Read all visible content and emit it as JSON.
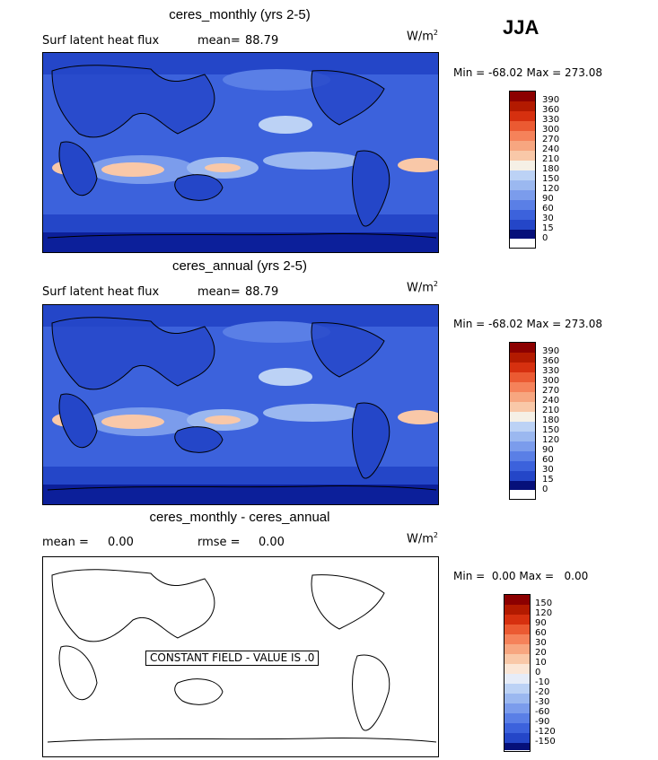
{
  "season": "JJA",
  "panels": [
    {
      "title": "ceres_monthly (yrs 2-5)",
      "variable": "Surf latent heat flux",
      "mean_label": "mean=",
      "mean_value": "88.79",
      "units_base": "W/m",
      "units_exp": "2",
      "min_label": "Min =",
      "min_value": "-68.02",
      "max_label": "Max =",
      "max_value": "273.08",
      "colorbar": [
        "390",
        "360",
        "330",
        "300",
        "270",
        "240",
        "210",
        "180",
        "150",
        "120",
        "90",
        "60",
        "30",
        "15",
        "0"
      ]
    },
    {
      "title": "ceres_annual (yrs 2-5)",
      "variable": "Surf latent heat flux",
      "mean_label": "mean=",
      "mean_value": "88.79",
      "units_base": "W/m",
      "units_exp": "2",
      "min_label": "Min =",
      "min_value": "-68.02",
      "max_label": "Max =",
      "max_value": "273.08",
      "colorbar": [
        "390",
        "360",
        "330",
        "300",
        "270",
        "240",
        "210",
        "180",
        "150",
        "120",
        "90",
        "60",
        "30",
        "15",
        "0"
      ]
    },
    {
      "title": "ceres_monthly - ceres_annual",
      "mean_label": "mean =",
      "mean_value": "0.00",
      "rmse_label": "rmse =",
      "rmse_value": "0.00",
      "units_base": "W/m",
      "units_exp": "2",
      "min_label": "Min =",
      "min_value": "0.00",
      "max_label": "Max =",
      "max_value": "0.00",
      "constant_text": "CONSTANT FIELD - VALUE IS .0",
      "colorbar": [
        "150",
        "120",
        "90",
        "60",
        "30",
        "20",
        "10",
        "0",
        "-10",
        "-20",
        "-30",
        "-60",
        "-90",
        "-120",
        "-150"
      ]
    }
  ],
  "colors": {
    "abs_scale": [
      "#8c0000",
      "#b31a00",
      "#d6300f",
      "#eb5a32",
      "#f5825a",
      "#f7a680",
      "#f9c8a8",
      "#f5f0e6",
      "#bcd2f5",
      "#9bb8f0",
      "#7b9cec",
      "#5a7fe6",
      "#3c62dc",
      "#2446c8",
      "#0c1f9a",
      "#06107a"
    ],
    "diff_scale": [
      "#8c0000",
      "#b31a00",
      "#d6300f",
      "#eb5a32",
      "#f5825a",
      "#f7a680",
      "#f9c8a8",
      "#fbe6d6",
      "#e6ecf8",
      "#bcd2f5",
      "#9bb8f0",
      "#7b9cec",
      "#5a7fe6",
      "#3c62dc",
      "#2446c8",
      "#06107a"
    ]
  }
}
